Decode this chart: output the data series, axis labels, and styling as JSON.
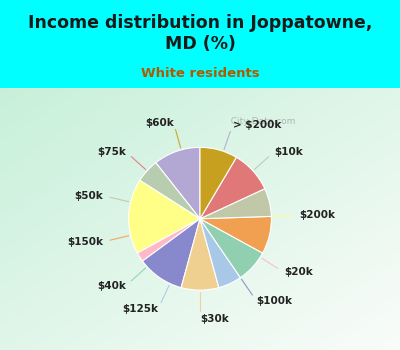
{
  "title": "Income distribution in Joppatowne,\nMD (%)",
  "subtitle": "White residents",
  "title_color": "#1a1a1a",
  "subtitle_color": "#b05a00",
  "background_top": "#00ffff",
  "watermark": "City-Data.com",
  "labels": [
    "> $200k",
    "$10k",
    "$200k",
    "$20k",
    "$100k",
    "$30k",
    "$125k",
    "$40k",
    "$150k",
    "$50k",
    "$75k",
    "$60k"
  ],
  "values": [
    10,
    5,
    16,
    2,
    10,
    8,
    5,
    7,
    8,
    6,
    9,
    8
  ],
  "colors": [
    "#b3a8d4",
    "#b8ccb0",
    "#ffff88",
    "#ffb8c8",
    "#8888cc",
    "#f0d090",
    "#a8c8e8",
    "#90d0b0",
    "#f0a050",
    "#c0c8a8",
    "#e07878",
    "#c8a020"
  ],
  "label_fontsize": 7.5,
  "startangle": 90,
  "title_fontsize": 12.5,
  "subtitle_fontsize": 9.5
}
